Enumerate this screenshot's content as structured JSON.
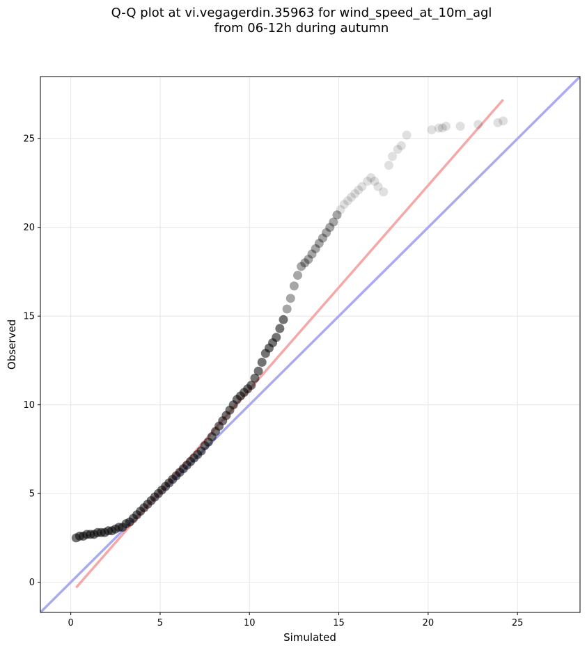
{
  "chart_data": {
    "type": "scatter",
    "title": "Q-Q plot at vi.vegagerdin.35963 for wind_speed_at_10m_agl",
    "subtitle": "from 06-12h during autumn",
    "xlabel": "Simulated",
    "ylabel": "Observed",
    "xlim": [
      -1.7,
      28.5
    ],
    "ylim": [
      -1.7,
      28.5
    ],
    "xticks": [
      0,
      5,
      10,
      15,
      20,
      25
    ],
    "yticks": [
      0,
      5,
      10,
      15,
      20,
      25
    ],
    "grid": true,
    "colors": {
      "points": "#000000",
      "identity_line": "#aaaaf2",
      "fit_line": "#f5a8a8"
    },
    "series": [
      {
        "type": "points",
        "x": [
          0.3,
          0.5,
          0.7,
          0.9,
          1.1,
          1.3,
          1.5,
          1.7,
          1.9,
          2.1,
          2.3,
          2.5,
          2.7,
          2.9,
          3.1,
          3.3,
          3.5,
          3.7,
          3.9,
          4.1,
          4.3,
          4.5,
          4.7,
          4.9,
          5.1,
          5.3,
          5.5,
          5.7,
          5.9,
          6.1,
          6.3,
          6.5,
          6.7,
          6.9,
          7.1,
          7.3,
          7.5,
          7.7,
          7.9,
          8.1,
          8.3,
          8.5,
          8.7,
          8.9,
          9.1,
          9.3,
          9.5,
          9.7,
          9.9,
          10.1,
          10.3,
          10.5,
          10.7,
          10.9,
          11.1,
          11.3,
          11.5,
          11.7,
          11.9,
          12.1,
          12.3,
          12.5,
          12.7,
          12.9,
          13.1,
          13.3,
          13.5,
          13.7,
          13.9,
          14.1,
          14.3,
          14.5,
          14.7,
          14.9,
          15.1,
          15.3,
          15.5,
          15.7,
          15.9,
          16.1,
          16.3,
          16.6,
          16.8,
          17.0,
          17.2,
          17.5,
          17.8,
          18.0,
          18.3,
          18.5,
          18.8,
          20.2,
          20.6,
          20.8,
          21.0,
          21.8,
          22.8,
          23.9,
          24.2
        ],
        "y": [
          2.5,
          2.6,
          2.6,
          2.7,
          2.7,
          2.7,
          2.8,
          2.8,
          2.8,
          2.9,
          2.9,
          3.0,
          3.1,
          3.1,
          3.3,
          3.4,
          3.6,
          3.8,
          4.0,
          4.2,
          4.4,
          4.6,
          4.8,
          5.0,
          5.2,
          5.4,
          5.6,
          5.8,
          6.0,
          6.2,
          6.4,
          6.6,
          6.8,
          7.0,
          7.2,
          7.4,
          7.7,
          7.9,
          8.2,
          8.5,
          8.8,
          9.1,
          9.4,
          9.7,
          10.0,
          10.3,
          10.5,
          10.7,
          10.9,
          11.1,
          11.5,
          11.9,
          12.4,
          12.9,
          13.2,
          13.5,
          13.8,
          14.3,
          14.8,
          15.4,
          16.0,
          16.7,
          17.3,
          17.8,
          18.0,
          18.2,
          18.5,
          18.8,
          19.1,
          19.4,
          19.7,
          20.0,
          20.3,
          20.7,
          21.0,
          21.3,
          21.5,
          21.7,
          21.9,
          22.1,
          22.3,
          22.6,
          22.8,
          22.6,
          22.3,
          22.0,
          23.5,
          24.0,
          24.4,
          24.6,
          25.2,
          25.5,
          25.6,
          25.6,
          25.7,
          25.7,
          25.8,
          25.9,
          26.0
        ],
        "comment": ""
      }
    ],
    "identity_line": {
      "x": [
        -1.7,
        28.5
      ],
      "y": [
        -1.7,
        28.5
      ]
    },
    "fit_line": {
      "x": [
        0.3,
        24.2
      ],
      "y": [
        -0.3,
        27.2
      ]
    }
  }
}
